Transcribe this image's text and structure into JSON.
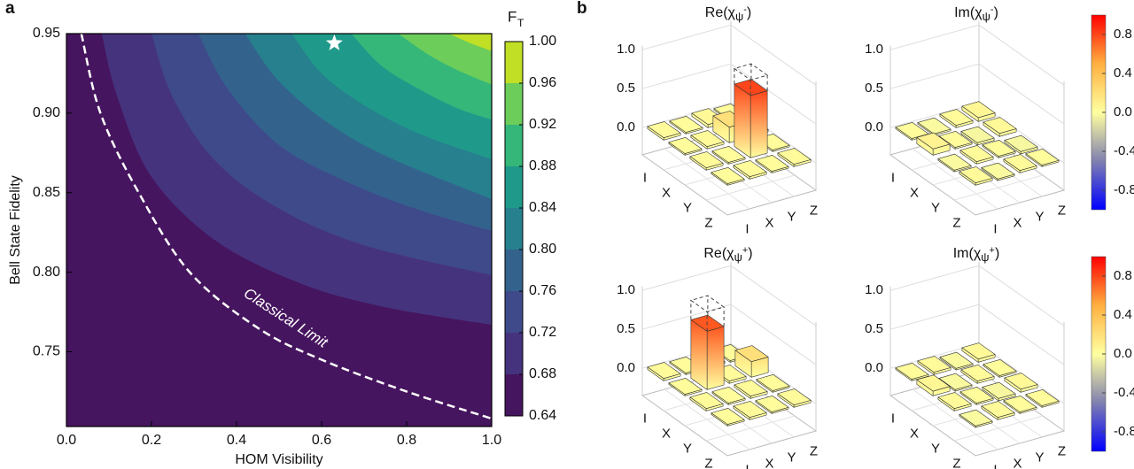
{
  "chart_data": [
    {
      "type": "contour",
      "panel": "a",
      "xlabel": "HOM Visibility",
      "ylabel": "Bell State Fidelity",
      "xlim": [
        0,
        1
      ],
      "ylim": [
        0.703,
        0.95
      ],
      "xticks": [
        {
          "value": 0,
          "label": "0.0"
        },
        0.2,
        0.4,
        0.6,
        0.8,
        {
          "value": 1,
          "label": "1.0"
        }
      ],
      "yticks": [
        0.75,
        {
          "value": 0.8,
          "label": "0.80"
        },
        0.85,
        {
          "value": 0.9,
          "label": "0.90"
        },
        0.95
      ],
      "boundaries": [
        {
          "x": [
            0.083,
            0.12,
            0.2,
            0.35,
            0.55,
            0.75,
            1.0
          ],
          "y": [
            0.95,
            0.91,
            0.86,
            0.82,
            0.793,
            0.778,
            0.767
          ]
        },
        {
          "x": [
            0.2,
            0.25,
            0.35,
            0.5,
            0.7,
            1.0
          ],
          "y": [
            0.95,
            0.91,
            0.87,
            0.84,
            0.817,
            0.798
          ]
        },
        {
          "x": [
            0.31,
            0.38,
            0.5,
            0.65,
            0.82,
            1.0
          ],
          "y": [
            0.95,
            0.915,
            0.88,
            0.858,
            0.84,
            0.826
          ]
        },
        {
          "x": [
            0.42,
            0.5,
            0.62,
            0.76,
            1.0
          ],
          "y": [
            0.95,
            0.92,
            0.893,
            0.872,
            0.846
          ]
        },
        {
          "x": [
            0.53,
            0.6,
            0.7,
            0.83,
            1.0
          ],
          "y": [
            0.95,
            0.925,
            0.905,
            0.887,
            0.871
          ]
        },
        {
          "x": [
            0.67,
            0.74,
            0.83,
            0.92,
            1.0
          ],
          "y": [
            0.95,
            0.93,
            0.915,
            0.903,
            0.896
          ]
        },
        {
          "x": [
            0.78,
            0.85,
            0.92,
            1.0
          ],
          "y": [
            0.95,
            0.937,
            0.927,
            0.918
          ]
        },
        {
          "x": [
            0.9,
            0.95,
            1.0
          ],
          "y": [
            0.95,
            0.944,
            0.939
          ]
        }
      ],
      "classical_limit": {
        "label": "Classical Limit",
        "x": [
          0.035,
          0.08,
          0.17,
          0.29,
          0.45,
          0.6,
          0.8,
          1.0
        ],
        "y": [
          0.95,
          0.9,
          0.85,
          0.8,
          0.765,
          0.745,
          0.725,
          0.708
        ]
      },
      "marker": {
        "x": 0.63,
        "y": 0.944
      },
      "colorbar": {
        "label": "F",
        "label_sub": "T",
        "clim": [
          0.64,
          1.0
        ],
        "ticks": [
          0.64,
          0.68,
          0.72,
          0.76,
          {
            "value": 0.8,
            "label": "0.80"
          },
          0.84,
          0.88,
          0.92,
          0.96,
          {
            "value": 1.0,
            "label": "1.00"
          }
        ],
        "colors": [
          "#46155f",
          "#46337e",
          "#3f4a8a",
          "#33638d",
          "#27808e",
          "#1f9a8a",
          "#35b779",
          "#6ccd5a",
          "#c0df25"
        ]
      }
    },
    {
      "type": "bar3d",
      "panel": "b",
      "categories": [
        "I",
        "X",
        "Y",
        "Z"
      ],
      "zlim": [
        -0.35,
        1.05
      ],
      "zticks": [
        {
          "value": 0,
          "label": "0.0"
        },
        0.5,
        {
          "value": 1,
          "label": "1.0"
        }
      ],
      "colorbar": {
        "clim": [
          -1,
          1
        ],
        "ticks": [
          0.8,
          0.4,
          {
            "value": 0,
            "label": "0.0"
          },
          -0.4,
          -0.8
        ],
        "colors": [
          "#0000ff",
          "#8080b0",
          "#ffffa0",
          "#ffb040",
          "#ff0000"
        ]
      },
      "plots": [
        {
          "title_main": "Re(χ",
          "title_sub": "ψ",
          "title_sup": "-",
          "title_end": ")",
          "values": [
            [
              0.03,
              0.02,
              0.04,
              0.02
            ],
            [
              0.02,
              0.03,
              0.2,
              0.03
            ],
            [
              0.03,
              0.02,
              0.8,
              0.02
            ],
            [
              0.02,
              0.03,
              0.02,
              0.03
            ]
          ],
          "ideal": {
            "row": 2,
            "col": 2,
            "value": 1
          }
        },
        {
          "title_main": "Im(χ",
          "title_sub": "ψ",
          "title_sup": "-",
          "title_end": ")",
          "values": [
            [
              0.02,
              -0.02,
              0.03,
              0.05
            ],
            [
              0.08,
              0.02,
              -0.03,
              0.04
            ],
            [
              -0.02,
              0.03,
              0.02,
              -0.03
            ],
            [
              0.03,
              -0.02,
              0.03,
              0.02
            ]
          ]
        },
        {
          "title_main": "Re(χ",
          "title_sub": "ψ",
          "title_sup": "+",
          "title_end": ")",
          "values": [
            [
              0.03,
              0.02,
              0.03,
              0.02
            ],
            [
              0.02,
              0.75,
              0.03,
              0.2
            ],
            [
              0.03,
              0.02,
              0.03,
              0.02
            ],
            [
              0.02,
              0.03,
              0.02,
              0.03
            ]
          ],
          "ideal": {
            "row": 1,
            "col": 1,
            "value": 1
          }
        },
        {
          "title_main": "Im(χ",
          "title_sub": "ψ",
          "title_sup": "+",
          "title_end": ")",
          "values": [
            [
              0.02,
              0.03,
              -0.02,
              0.04
            ],
            [
              0.06,
              -0.02,
              0.03,
              0.02
            ],
            [
              0.03,
              0.02,
              -0.03,
              0.04
            ],
            [
              -0.02,
              0.03,
              0.02,
              0.02
            ]
          ]
        }
      ]
    }
  ]
}
